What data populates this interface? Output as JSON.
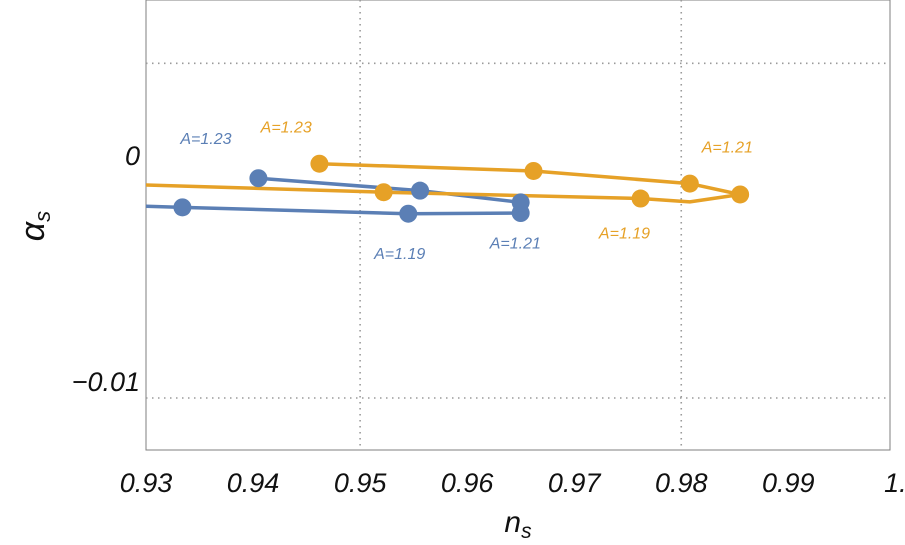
{
  "chart_data": {
    "type": "line",
    "xlabel": {
      "base": "n",
      "sub": "s"
    },
    "ylabel": {
      "base": "α",
      "sub": "s"
    },
    "xlim": [
      0.93,
      0.9995
    ],
    "ylim": [
      -0.013,
      0.0069
    ],
    "x_ticks": [
      {
        "value": 0.93,
        "label": "0.93"
      },
      {
        "value": 0.94,
        "label": "0.94"
      },
      {
        "value": 0.95,
        "label": "0.95"
      },
      {
        "value": 0.96,
        "label": "0.96"
      },
      {
        "value": 0.97,
        "label": "0.97"
      },
      {
        "value": 0.98,
        "label": "0.98"
      },
      {
        "value": 0.99,
        "label": "0.99"
      },
      {
        "value": 1.0,
        "label": "1."
      }
    ],
    "y_ticks": [
      {
        "value": 0,
        "label": "0"
      },
      {
        "value": -0.01,
        "label": "−0.01"
      }
    ],
    "grid": {
      "x": [
        0.95,
        0.98
      ],
      "y": [
        0.0041,
        -0.0107
      ],
      "style": "dotted"
    },
    "colors": {
      "blue": "#5b7fb5",
      "orange": "#e6a127"
    },
    "series": [
      {
        "color": "#5b7fb5",
        "curve": [
          [
            0.93,
            -0.00222
          ],
          [
            0.9334,
            -0.00227
          ],
          [
            0.9545,
            -0.00255
          ],
          [
            0.965,
            -0.00252
          ],
          [
            0.965,
            -0.00205
          ],
          [
            0.9556,
            -0.00153
          ],
          [
            0.9405,
            -0.00098
          ]
        ],
        "points": [
          [
            0.9334,
            -0.00227
          ],
          [
            0.9405,
            -0.00098
          ],
          [
            0.9556,
            -0.00153
          ],
          [
            0.9545,
            -0.00255
          ],
          [
            0.965,
            -0.00252
          ],
          [
            0.965,
            -0.00205
          ]
        ],
        "annotations": [
          {
            "text": "A=1.23",
            "x": 0.9356,
            "y": 0.00053
          },
          {
            "text": "A=1.19",
            "x": 0.9537,
            "y": -0.00455
          },
          {
            "text": "A=1.21",
            "x": 0.9645,
            "y": -0.0041
          }
        ]
      },
      {
        "color": "#e6a127",
        "curve": [
          [
            0.9462,
            -0.00034
          ],
          [
            0.9662,
            -0.00066
          ],
          [
            0.9808,
            -0.00122
          ],
          [
            0.9855,
            -0.0017
          ],
          [
            0.9808,
            -0.00203
          ],
          [
            0.9762,
            -0.00188
          ],
          [
            0.9522,
            -0.0016
          ],
          [
            0.93,
            -0.00128
          ]
        ],
        "points": [
          [
            0.9462,
            -0.00034
          ],
          [
            0.9662,
            -0.00066
          ],
          [
            0.9808,
            -0.00122
          ],
          [
            0.9855,
            -0.0017
          ],
          [
            0.9762,
            -0.00188
          ],
          [
            0.9522,
            -0.0016
          ]
        ],
        "annotations": [
          {
            "text": "A=1.23",
            "x": 0.9431,
            "y": 0.00104
          },
          {
            "text": "A=1.21",
            "x": 0.9843,
            "y": 0.00015
          },
          {
            "text": "A=1.19",
            "x": 0.9747,
            "y": -0.00365
          }
        ]
      }
    ]
  }
}
